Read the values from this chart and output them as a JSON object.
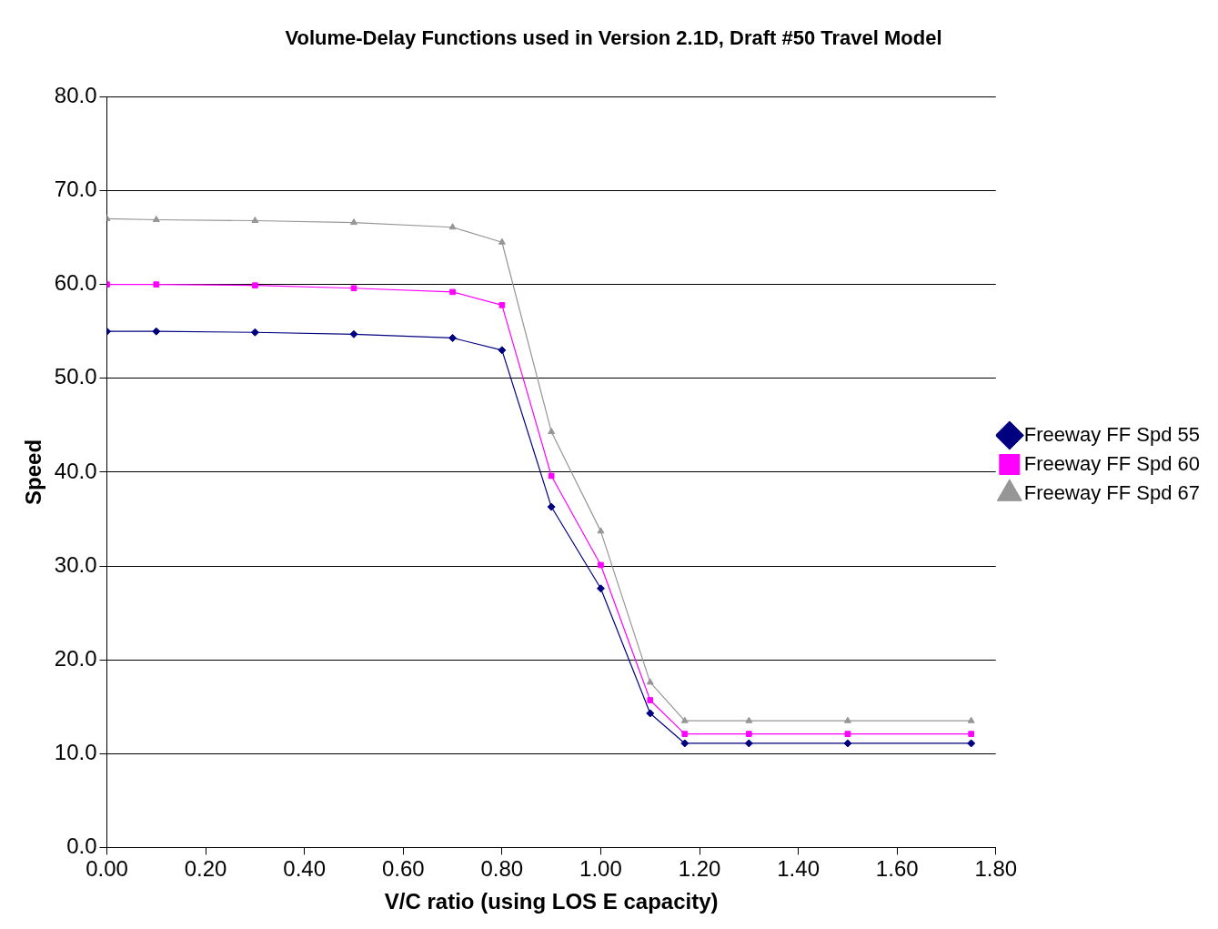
{
  "chart_data": {
    "type": "line",
    "title": "Volume-Delay Functions used in Version 2.1D, Draft #50 Travel Model",
    "xlabel": "V/C ratio (using LOS E capacity)",
    "ylabel": "Speed",
    "x": [
      0,
      0.1,
      0.3,
      0.5,
      0.7,
      0.8,
      0.9,
      1.0,
      1.1,
      1.17,
      1.3,
      1.5,
      1.75
    ],
    "series": [
      {
        "name": "Freeway FF Spd 55",
        "color": "#000080",
        "marker": "diamond",
        "values": [
          55.0,
          55.0,
          54.9,
          54.7,
          54.3,
          53.0,
          36.3,
          27.6,
          14.3,
          11.1,
          11.1,
          11.1,
          11.1
        ]
      },
      {
        "name": "Freeway FF Spd 60",
        "color": "#ff00ff",
        "marker": "square",
        "values": [
          60.0,
          60.0,
          59.9,
          59.6,
          59.2,
          57.8,
          39.6,
          30.1,
          15.7,
          12.1,
          12.1,
          12.1,
          12.1
        ]
      },
      {
        "name": "Freeway FF Spd 67",
        "color": "#969696",
        "marker": "triangle",
        "values": [
          67.0,
          66.9,
          66.8,
          66.6,
          66.1,
          64.5,
          44.3,
          33.7,
          17.6,
          13.5,
          13.5,
          13.5,
          13.5
        ]
      }
    ],
    "xlim": [
      0,
      1.8
    ],
    "xticks": [
      {
        "value": 0,
        "label": "0.00"
      },
      {
        "value": 0.2,
        "label": "0.20"
      },
      {
        "value": 0.4,
        "label": "0.40"
      },
      {
        "value": 0.6,
        "label": "0.60"
      },
      {
        "value": 0.8,
        "label": "0.80"
      },
      {
        "value": 1,
        "label": "1.00"
      },
      {
        "value": 1.2,
        "label": "1.20"
      },
      {
        "value": 1.4,
        "label": "1.40"
      },
      {
        "value": 1.6,
        "label": "1.60"
      },
      {
        "value": 1.8,
        "label": "1.80"
      }
    ],
    "ylim": [
      0,
      80
    ],
    "yticks": [
      {
        "value": 0,
        "label": "0.0"
      },
      {
        "value": 10,
        "label": "10.0"
      },
      {
        "value": 20,
        "label": "20.0"
      },
      {
        "value": 30,
        "label": "30.0"
      },
      {
        "value": 40,
        "label": "40.0"
      },
      {
        "value": 50,
        "label": "50.0"
      },
      {
        "value": 60,
        "label": "60.0"
      },
      {
        "value": 70,
        "label": "70.0"
      },
      {
        "value": 80,
        "label": "80.0"
      }
    ],
    "grid": "y",
    "legend": "right",
    "line_style": "solid"
  }
}
